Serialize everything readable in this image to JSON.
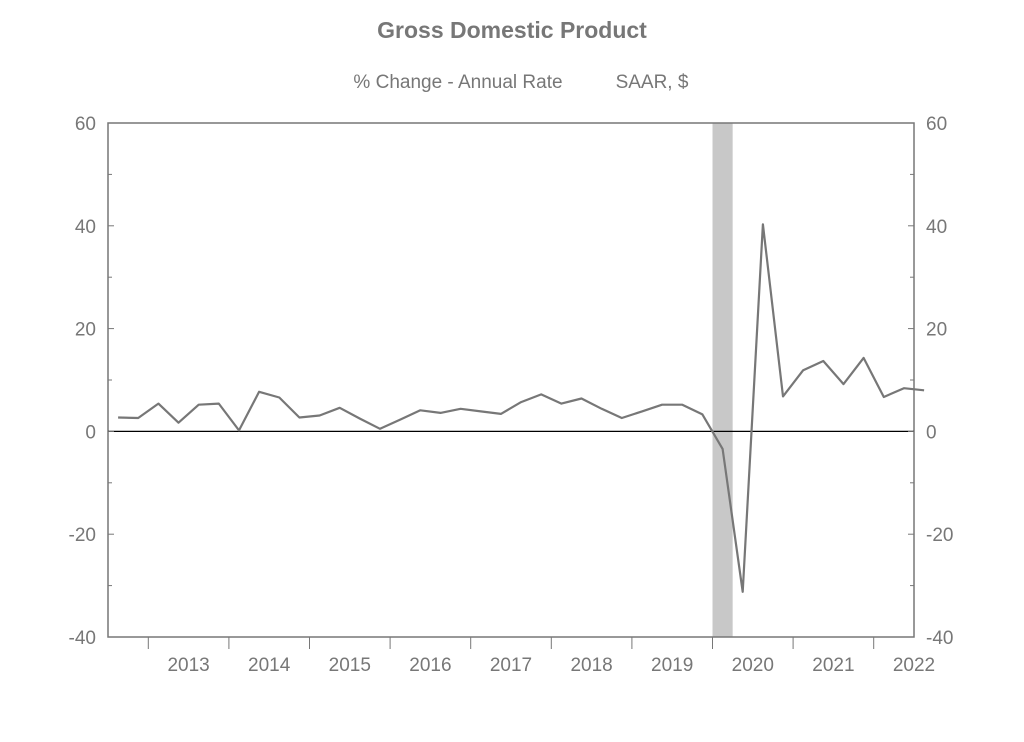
{
  "chart_data": {
    "type": "line",
    "title": "Gross Domestic Product",
    "subtitle_left": "% Change - Annual Rate",
    "subtitle_right": "SAAR, $",
    "xlabel": "",
    "ylabel": "",
    "ylim": [
      -40,
      60
    ],
    "y_ticks": [
      60,
      40,
      20,
      0,
      -20,
      -40
    ],
    "y_tick_labels": [
      "60",
      "40",
      "20",
      "0",
      "-20",
      "-40"
    ],
    "x_ticks": [
      "2013",
      "2014",
      "2015",
      "2016",
      "2017",
      "2018",
      "2019",
      "2020",
      "2021",
      "2022"
    ],
    "x_range_years": [
      2012.5,
      2022.5
    ],
    "grid": false,
    "dual_y_axis": true,
    "zero_line": true,
    "recession_shading": [
      2020.0,
      2020.25
    ],
    "colors": {
      "line": "#777777",
      "axis": "#777777",
      "zero_line": "#000000",
      "recession": "#c8c8c8"
    },
    "series": [
      {
        "x": [
          "2012-Q3",
          "2012-Q4",
          "2013-Q1",
          "2013-Q2",
          "2013-Q3",
          "2013-Q4",
          "2014-Q1",
          "2014-Q2",
          "2014-Q3",
          "2014-Q4",
          "2015-Q1",
          "2015-Q2",
          "2015-Q3",
          "2015-Q4",
          "2016-Q1",
          "2016-Q2",
          "2016-Q3",
          "2016-Q4",
          "2017-Q1",
          "2017-Q2",
          "2017-Q3",
          "2017-Q4",
          "2018-Q1",
          "2018-Q2",
          "2018-Q3",
          "2018-Q4",
          "2019-Q1",
          "2019-Q2",
          "2019-Q3",
          "2019-Q4",
          "2020-Q1",
          "2020-Q2",
          "2020-Q3",
          "2020-Q4",
          "2021-Q1",
          "2021-Q2",
          "2021-Q3",
          "2021-Q4",
          "2022-Q1",
          "2022-Q2",
          "2022-Q3"
        ],
        "values": [
          2.7,
          2.6,
          5.4,
          1.7,
          5.2,
          5.4,
          0.2,
          7.7,
          6.6,
          2.7,
          3.1,
          4.6,
          2.5,
          0.5,
          2.3,
          4.1,
          3.6,
          4.4,
          3.9,
          3.4,
          5.7,
          7.2,
          5.4,
          6.4,
          4.4,
          2.6,
          3.9,
          5.2,
          5.2,
          3.3,
          -3.4,
          -31.2,
          40.3,
          6.8,
          11.9,
          13.7,
          9.2,
          14.3,
          6.7,
          8.4,
          8.0
        ]
      }
    ]
  }
}
